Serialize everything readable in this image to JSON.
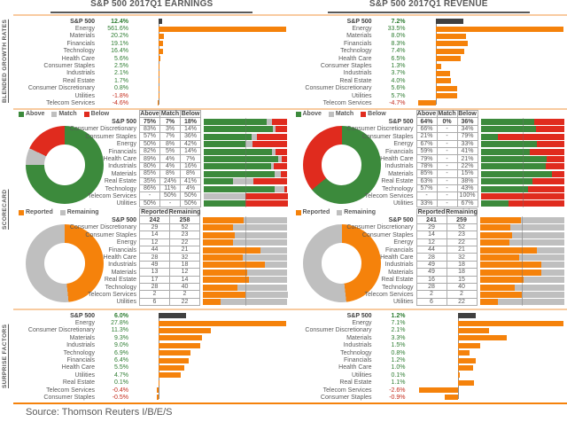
{
  "header": {
    "left_title": "S&P 500 2017Q1 EARNINGS",
    "right_title": "S&P 500 2017Q1 REVENUE"
  },
  "sections": {
    "growth": "BLENDED GROWTH RATES",
    "scorecard": "SCORECARD",
    "surprise": "SURPRISE FACTORS"
  },
  "source": "Source: Thomson Reuters I/B/E/S",
  "colors": {
    "orange": "#F5820B",
    "dark": "#404040",
    "green": "#3C8A3C",
    "red": "#E02B1E",
    "gray": "#BFBFBF",
    "green_text": "#2E7D32",
    "red_text": "#C42B1C",
    "label_text": "#595959",
    "divider_tan": "#F8CBA0"
  },
  "chart_data": [
    {
      "id": "growth_earnings",
      "type": "bar",
      "title": "S&P 500 2017Q1 EARNINGS",
      "section": "BLENDED GROWTH RATES",
      "categories": [
        "S&P 500",
        "Energy",
        "Materials",
        "Financials",
        "Technology",
        "Health Care",
        "Consumer Staples",
        "Industrials",
        "Real Estate",
        "Consumer Discretionary",
        "Utilities",
        "Telecom Services"
      ],
      "values": [
        12.4,
        561.6,
        20.2,
        19.1,
        16.4,
        5.6,
        2.5,
        2.1,
        1.7,
        0.8,
        -1.8,
        -4.6
      ],
      "value_labels": [
        "12.4%",
        "561.6%",
        "20.2%",
        "19.1%",
        "16.4%",
        "5.6%",
        "2.5%",
        "2.1%",
        "1.7%",
        "0.8%",
        "-1.8%",
        "-4.6%"
      ]
    },
    {
      "id": "growth_revenue",
      "type": "bar",
      "title": "S&P 500 2017Q1 REVENUE",
      "section": "BLENDED GROWTH RATES",
      "categories": [
        "S&P 500",
        "Energy",
        "Materials",
        "Financials",
        "Technology",
        "Health Care",
        "Consumer Staples",
        "Industrials",
        "Real Estate",
        "Consumer Discretionary",
        "Utilities",
        "Telecom Services"
      ],
      "values": [
        7.2,
        33.5,
        8.0,
        8.3,
        7.4,
        6.5,
        1.3,
        3.7,
        4.0,
        5.6,
        5.7,
        -4.7
      ],
      "value_labels": [
        "7.2%",
        "33.5%",
        "8.0%",
        "8.3%",
        "7.4%",
        "6.5%",
        "1.3%",
        "3.7%",
        "4.0%",
        "5.6%",
        "5.7%",
        "-4.7%"
      ]
    },
    {
      "id": "sc_earnings_amb",
      "type": "table",
      "section": "SCORECARD",
      "legend": [
        "Above",
        "Match",
        "Below"
      ],
      "headers": [
        "Above",
        "Match",
        "Below"
      ],
      "colors": [
        "#3C8A3C",
        "#BFBFBF",
        "#E02B1E"
      ],
      "donut": [
        75,
        7,
        18
      ],
      "rows": [
        {
          "label": "S&P 500",
          "cells": [
            "75%",
            "7%",
            "18%"
          ]
        },
        {
          "label": "Consumer Discretionary",
          "cells": [
            "83%",
            "3%",
            "14%"
          ]
        },
        {
          "label": "Consumer Staples",
          "cells": [
            "57%",
            "7%",
            "36%"
          ]
        },
        {
          "label": "Energy",
          "cells": [
            "50%",
            "8%",
            "42%"
          ]
        },
        {
          "label": "Financials",
          "cells": [
            "82%",
            "5%",
            "14%"
          ]
        },
        {
          "label": "Health Care",
          "cells": [
            "89%",
            "4%",
            "7%"
          ]
        },
        {
          "label": "Industrials",
          "cells": [
            "80%",
            "4%",
            "16%"
          ]
        },
        {
          "label": "Materials",
          "cells": [
            "85%",
            "8%",
            "8%"
          ]
        },
        {
          "label": "Real Estate",
          "cells": [
            "35%",
            "24%",
            "41%"
          ]
        },
        {
          "label": "Technology",
          "cells": [
            "86%",
            "11%",
            "4%"
          ]
        },
        {
          "label": "Telecom Services",
          "cells": [
            "-",
            "50%",
            "50%"
          ]
        },
        {
          "label": "Utilities",
          "cells": [
            "50%",
            "-",
            "50%"
          ]
        }
      ]
    },
    {
      "id": "sc_revenue_amb",
      "type": "table",
      "section": "SCORECARD",
      "legend": [
        "Above",
        "Match",
        "Below"
      ],
      "headers": [
        "Above",
        "Match",
        "Below"
      ],
      "colors": [
        "#3C8A3C",
        "#BFBFBF",
        "#E02B1E"
      ],
      "donut": [
        64,
        0,
        36
      ],
      "rows": [
        {
          "label": "S&P 500",
          "cells": [
            "64%",
            "0%",
            "36%"
          ]
        },
        {
          "label": "Consumer Discretionary",
          "cells": [
            "66%",
            "-",
            "34%"
          ]
        },
        {
          "label": "Consumer Staples",
          "cells": [
            "21%",
            "-",
            "79%"
          ]
        },
        {
          "label": "Energy",
          "cells": [
            "67%",
            "-",
            "33%"
          ]
        },
        {
          "label": "Financials",
          "cells": [
            "59%",
            "-",
            "41%"
          ]
        },
        {
          "label": "Health Care",
          "cells": [
            "79%",
            "-",
            "21%"
          ]
        },
        {
          "label": "Industrials",
          "cells": [
            "78%",
            "-",
            "22%"
          ]
        },
        {
          "label": "Materials",
          "cells": [
            "85%",
            "-",
            "15%"
          ]
        },
        {
          "label": "Real Estate",
          "cells": [
            "63%",
            "-",
            "38%"
          ]
        },
        {
          "label": "Technology",
          "cells": [
            "57%",
            "-",
            "43%"
          ]
        },
        {
          "label": "Telecom Services",
          "cells": [
            "-",
            "-",
            "100%"
          ]
        },
        {
          "label": "Utilities",
          "cells": [
            "33%",
            "-",
            "67%"
          ]
        }
      ]
    },
    {
      "id": "sc_earnings_rep",
      "type": "table",
      "section": "SCORECARD",
      "legend": [
        "Reported",
        "Remaining"
      ],
      "headers": [
        "Reported",
        "Remaining"
      ],
      "colors": [
        "#F5820B",
        "#BFBFBF"
      ],
      "donut": [
        242,
        258
      ],
      "rows": [
        {
          "label": "S&P 500",
          "cells": [
            "242",
            "258"
          ]
        },
        {
          "label": "Consumer Discretionary",
          "cells": [
            "29",
            "52"
          ]
        },
        {
          "label": "Consumer Staples",
          "cells": [
            "14",
            "23"
          ]
        },
        {
          "label": "Energy",
          "cells": [
            "12",
            "22"
          ]
        },
        {
          "label": "Financials",
          "cells": [
            "44",
            "21"
          ]
        },
        {
          "label": "Health Care",
          "cells": [
            "28",
            "32"
          ]
        },
        {
          "label": "Industrials",
          "cells": [
            "49",
            "18"
          ]
        },
        {
          "label": "Materials",
          "cells": [
            "13",
            "12"
          ]
        },
        {
          "label": "Real Estate",
          "cells": [
            "17",
            "14"
          ]
        },
        {
          "label": "Technology",
          "cells": [
            "28",
            "40"
          ]
        },
        {
          "label": "Telecom Services",
          "cells": [
            "2",
            "2"
          ]
        },
        {
          "label": "Utilities",
          "cells": [
            "6",
            "22"
          ]
        }
      ]
    },
    {
      "id": "sc_revenue_rep",
      "type": "table",
      "section": "SCORECARD",
      "legend": [
        "Reported",
        "Remaining"
      ],
      "headers": [
        "Reported",
        "Remaining"
      ],
      "colors": [
        "#F5820B",
        "#BFBFBF"
      ],
      "donut": [
        241,
        259
      ],
      "rows": [
        {
          "label": "S&P 500",
          "cells": [
            "241",
            "259"
          ]
        },
        {
          "label": "Consumer Discretionary",
          "cells": [
            "29",
            "52"
          ]
        },
        {
          "label": "Consumer Staples",
          "cells": [
            "14",
            "23"
          ]
        },
        {
          "label": "Energy",
          "cells": [
            "12",
            "22"
          ]
        },
        {
          "label": "Financials",
          "cells": [
            "44",
            "21"
          ]
        },
        {
          "label": "Health Care",
          "cells": [
            "28",
            "32"
          ]
        },
        {
          "label": "Industrials",
          "cells": [
            "49",
            "18"
          ]
        },
        {
          "label": "Materials",
          "cells": [
            "49",
            "18"
          ]
        },
        {
          "label": "Real Estate",
          "cells": [
            "16",
            "15"
          ]
        },
        {
          "label": "Technology",
          "cells": [
            "28",
            "40"
          ]
        },
        {
          "label": "Telecom Services",
          "cells": [
            "2",
            "2"
          ]
        },
        {
          "label": "Utilities",
          "cells": [
            "6",
            "22"
          ]
        }
      ]
    },
    {
      "id": "surprise_earnings",
      "type": "bar",
      "title": "S&P 500 2017Q1 EARNINGS",
      "section": "SURPRISE FACTORS",
      "categories": [
        "S&P 500",
        "Energy",
        "Consumer Discretionary",
        "Materials",
        "Industrials",
        "Technology",
        "Financials",
        "Health Care",
        "Utilities",
        "Real Estate",
        "Telecom Services",
        "Consumer Staples"
      ],
      "values": [
        6.0,
        27.8,
        11.3,
        9.3,
        9.0,
        6.9,
        6.4,
        5.5,
        4.7,
        0.1,
        -0.4,
        -0.5
      ],
      "value_labels": [
        "6.0%",
        "27.8%",
        "11.3%",
        "9.3%",
        "9.0%",
        "6.9%",
        "6.4%",
        "5.5%",
        "4.7%",
        "0.1%",
        "-0.4%",
        "-0.5%"
      ]
    },
    {
      "id": "surprise_revenue",
      "type": "bar",
      "title": "S&P 500 2017Q1 REVENUE",
      "section": "SURPRISE FACTORS",
      "categories": [
        "S&P 500",
        "Energy",
        "Consumer Discretionary",
        "Materials",
        "Industrials",
        "Technology",
        "Financials",
        "Health Care",
        "Utilities",
        "Real Estate",
        "Telecom Services",
        "Consumer Staples"
      ],
      "values": [
        1.2,
        7.1,
        2.1,
        3.3,
        1.5,
        0.8,
        1.2,
        1.0,
        0.1,
        1.1,
        -2.6,
        -0.9
      ],
      "value_labels": [
        "1.2%",
        "7.1%",
        "2.1%",
        "3.3%",
        "1.5%",
        "0.8%",
        "1.2%",
        "1.0%",
        "0.1%",
        "1.1%",
        "-2.6%",
        "-0.9%"
      ]
    }
  ]
}
